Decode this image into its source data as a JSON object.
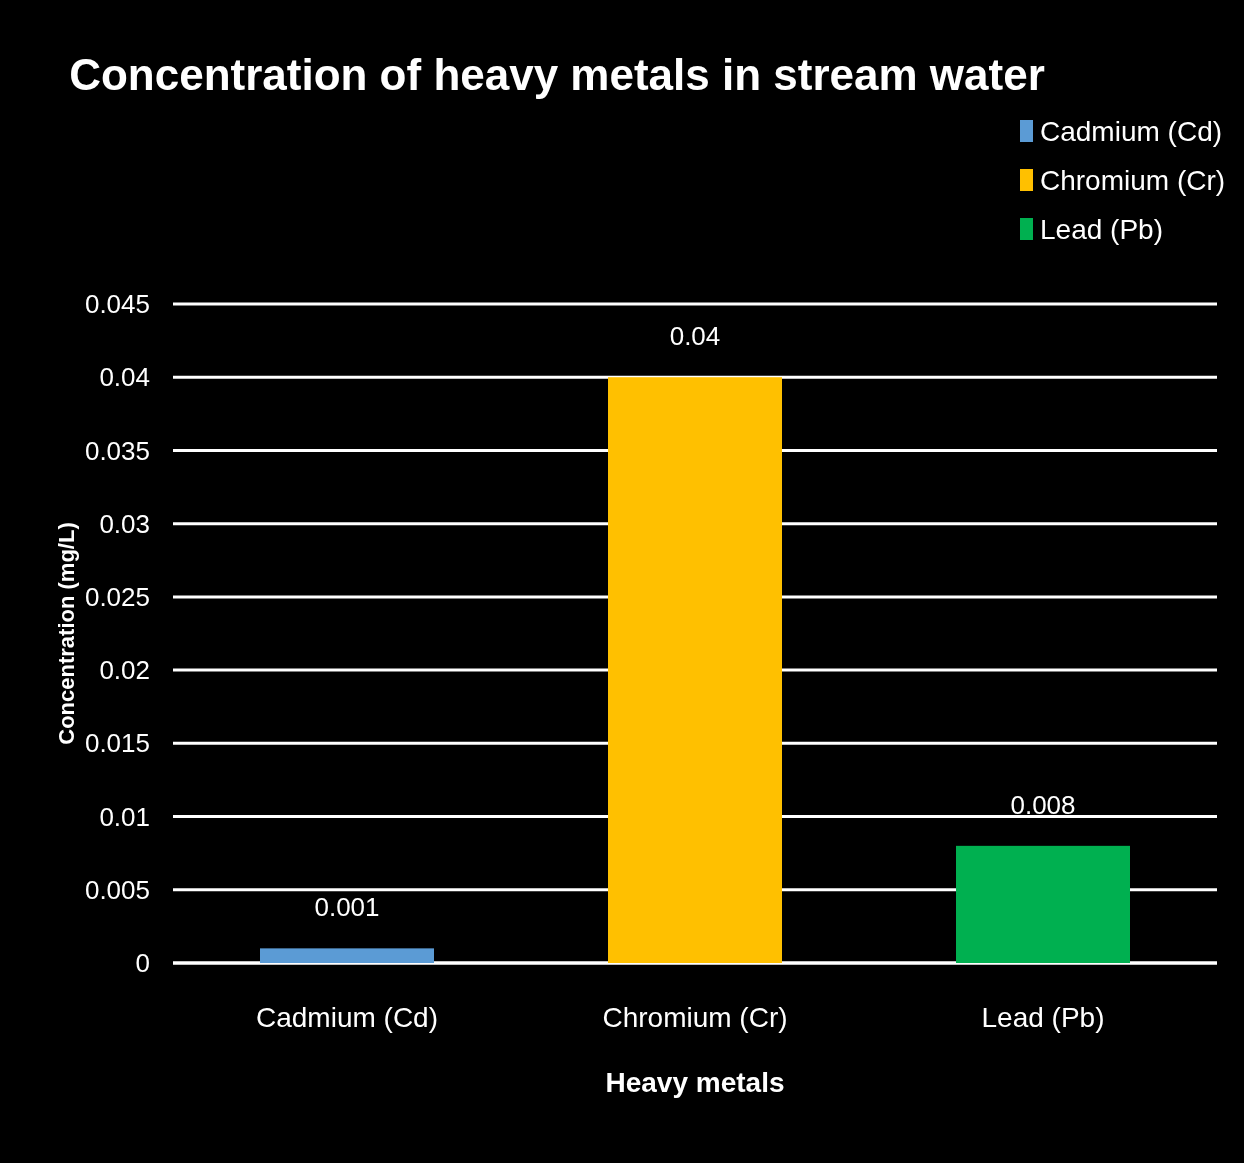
{
  "chart_data": {
    "type": "bar",
    "title": "Concentration of heavy metals in stream water",
    "xlabel": "Heavy metals",
    "ylabel": "Concentration (mg/L)",
    "categories": [
      "Cadmium (Cd)",
      "Chromium (Cr)",
      "Lead (Pb)"
    ],
    "series": [
      {
        "name": "Cadmium (Cd)",
        "color": "#5b9bd5",
        "values": [
          0.001,
          null,
          null
        ]
      },
      {
        "name": "Chromium (Cr)",
        "color": "#ffc000",
        "values": [
          null,
          0.04,
          null
        ]
      },
      {
        "name": "Lead (Pb)",
        "color": "#00b050",
        "values": [
          null,
          null,
          0.008
        ]
      }
    ],
    "ylim": [
      0,
      0.045
    ],
    "yticks": [
      0,
      0.005,
      0.01,
      0.015,
      0.02,
      0.025,
      0.03,
      0.035,
      0.04,
      0.045
    ],
    "grid": "y",
    "legend": "top right",
    "data_labels": true
  }
}
